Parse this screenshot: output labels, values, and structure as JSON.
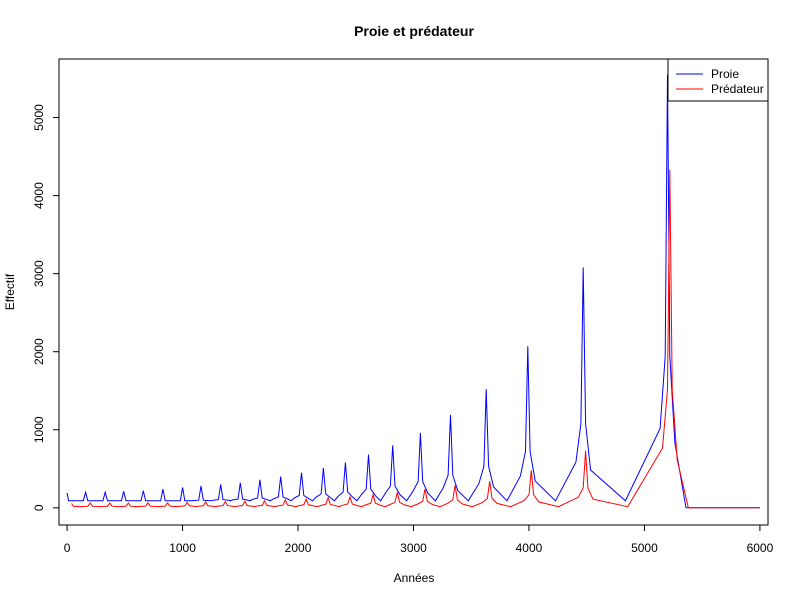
{
  "chart_data": {
    "type": "line",
    "title": "Proie et prédateur",
    "xlabel": "Années",
    "ylabel": "Effectif",
    "xlim": [
      -70,
      6070
    ],
    "ylim": [
      -220,
      5750
    ],
    "x_ticks": [
      0,
      1000,
      2000,
      3000,
      4000,
      5000,
      6000
    ],
    "y_ticks": [
      0,
      1000,
      2000,
      3000,
      4000,
      5000
    ],
    "legend_position": "top-right",
    "grid": false,
    "series": [
      {
        "name": "Proie",
        "color": "#0000ff",
        "peaks": [
          {
            "x": 0,
            "y": 190
          },
          {
            "x": 160,
            "y": 200
          },
          {
            "x": 330,
            "y": 200
          },
          {
            "x": 490,
            "y": 210
          },
          {
            "x": 660,
            "y": 220
          },
          {
            "x": 830,
            "y": 240
          },
          {
            "x": 1000,
            "y": 260
          },
          {
            "x": 1160,
            "y": 280
          },
          {
            "x": 1330,
            "y": 300
          },
          {
            "x": 1500,
            "y": 320
          },
          {
            "x": 1670,
            "y": 360
          },
          {
            "x": 1850,
            "y": 400
          },
          {
            "x": 2030,
            "y": 450
          },
          {
            "x": 2220,
            "y": 510
          },
          {
            "x": 2410,
            "y": 580
          },
          {
            "x": 2610,
            "y": 680
          },
          {
            "x": 2820,
            "y": 800
          },
          {
            "x": 3060,
            "y": 960
          },
          {
            "x": 3320,
            "y": 1190
          },
          {
            "x": 3630,
            "y": 1520
          },
          {
            "x": 3990,
            "y": 2070
          },
          {
            "x": 4470,
            "y": 3080
          },
          {
            "x": 5200,
            "y": 5550
          }
        ],
        "trough": 90,
        "end_value": 0
      },
      {
        "name": "Prédateur",
        "color": "#ff0000",
        "peaks": [
          {
            "x": 40,
            "y": 55
          },
          {
            "x": 200,
            "y": 60
          },
          {
            "x": 370,
            "y": 60
          },
          {
            "x": 530,
            "y": 60
          },
          {
            "x": 700,
            "y": 65
          },
          {
            "x": 870,
            "y": 65
          },
          {
            "x": 1040,
            "y": 70
          },
          {
            "x": 1200,
            "y": 75
          },
          {
            "x": 1370,
            "y": 80
          },
          {
            "x": 1540,
            "y": 85
          },
          {
            "x": 1710,
            "y": 90
          },
          {
            "x": 1890,
            "y": 100
          },
          {
            "x": 2070,
            "y": 110
          },
          {
            "x": 2260,
            "y": 130
          },
          {
            "x": 2450,
            "y": 140
          },
          {
            "x": 2650,
            "y": 170
          },
          {
            "x": 2860,
            "y": 200
          },
          {
            "x": 3100,
            "y": 240
          },
          {
            "x": 3360,
            "y": 290
          },
          {
            "x": 3660,
            "y": 340
          },
          {
            "x": 4020,
            "y": 480
          },
          {
            "x": 4490,
            "y": 730
          },
          {
            "x": 5220,
            "y": 4330
          }
        ],
        "trough": 15,
        "end_value": 0
      }
    ]
  },
  "legend": {
    "items": [
      {
        "label": "Proie",
        "color": "#0000ff"
      },
      {
        "label": "Prédateur",
        "color": "#ff0000"
      }
    ]
  }
}
